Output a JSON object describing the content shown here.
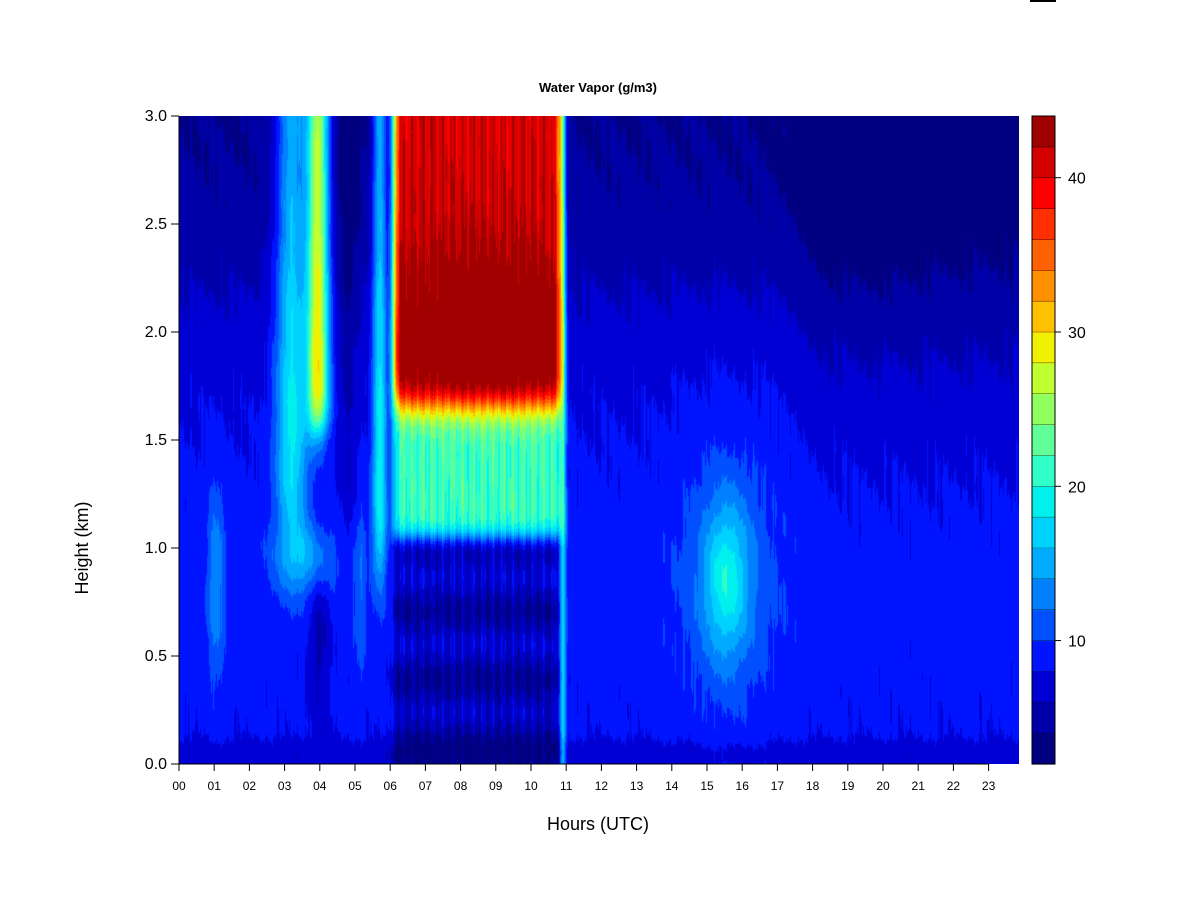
{
  "chart_data": {
    "type": "heatmap",
    "title": "Water Vapor (g/m3)",
    "xlabel": "Hours (UTC)",
    "ylabel": "Height (km)",
    "xlim": [
      0,
      24
    ],
    "ylim": [
      0,
      3
    ],
    "x_ticks": [
      "00",
      "01",
      "02",
      "03",
      "04",
      "05",
      "06",
      "07",
      "08",
      "09",
      "10",
      "11",
      "12",
      "13",
      "14",
      "15",
      "16",
      "17",
      "18",
      "19",
      "20",
      "21",
      "22",
      "23"
    ],
    "y_ticks": [
      "0.0",
      "0.5",
      "1.0",
      "1.5",
      "2.0",
      "2.5",
      "3.0"
    ],
    "colorbar": {
      "min": 2,
      "max": 44,
      "step": 2,
      "ticks": [
        "10",
        "20",
        "30",
        "40"
      ],
      "colors": [
        "#000080",
        "#0000a8",
        "#0000d4",
        "#0014ff",
        "#0050ff",
        "#0080ff",
        "#00aaff",
        "#00d2ff",
        "#00f0ee",
        "#30ffc8",
        "#60ff98",
        "#90ff60",
        "#c0ff30",
        "#f0f000",
        "#ffc000",
        "#ff9000",
        "#ff6000",
        "#ff3000",
        "#ff0000",
        "#d40000",
        "#a00000"
      ]
    },
    "grid": false,
    "features": [
      {
        "x": 1.05,
        "y": 0.85,
        "value": 12
      },
      {
        "x": 3.2,
        "y": 2.3,
        "value": 18
      },
      {
        "x": 3.9,
        "y": 2.3,
        "value": 30
      },
      {
        "x": 5.7,
        "y": 2.2,
        "value": 19
      },
      {
        "x": 7.0,
        "y": 2.4,
        "value": 40
      },
      {
        "x": 8.5,
        "y": 2.0,
        "value": 44
      },
      {
        "x": 8.0,
        "y": 1.3,
        "value": 22
      },
      {
        "x": 8.5,
        "y": 0.7,
        "value": 4
      },
      {
        "x": 15.6,
        "y": 0.85,
        "value": 17
      },
      {
        "x": 19.5,
        "y": 2.8,
        "value": 2
      },
      {
        "x": 4.0,
        "y": 0.5,
        "value": 4
      }
    ]
  }
}
